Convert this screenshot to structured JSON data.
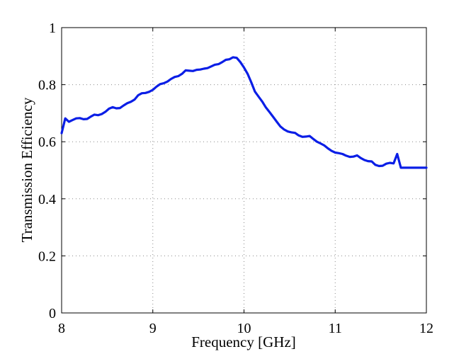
{
  "chart_data": {
    "type": "line",
    "title": "",
    "xlabel": "Frequency [GHz]",
    "ylabel": "Transmission Efficiency",
    "xlim": [
      8,
      12
    ],
    "ylim": [
      0,
      1
    ],
    "grid": true,
    "x_ticks": [
      8,
      9,
      10,
      11,
      12
    ],
    "y_ticks": [
      0,
      0.2,
      0.4,
      0.6,
      0.8,
      1
    ],
    "x_tick_labels": [
      "8",
      "9",
      "10",
      "11",
      "12"
    ],
    "y_tick_labels": [
      "0",
      "0.2",
      "0.4",
      "0.6",
      "0.8",
      "1"
    ],
    "line_color": "#0a1ee6",
    "series": [
      {
        "x": [
          8.0,
          8.04,
          8.08,
          8.12,
          8.16,
          8.2,
          8.24,
          8.28,
          8.32,
          8.36,
          8.4,
          8.44,
          8.48,
          8.52,
          8.56,
          8.6,
          8.64,
          8.68,
          8.72,
          8.76,
          8.8,
          8.84,
          8.88,
          8.92,
          8.96,
          9.0,
          9.04,
          9.08,
          9.12,
          9.16,
          9.2,
          9.24,
          9.28,
          9.32,
          9.36,
          9.4,
          9.44,
          9.48,
          9.52,
          9.56,
          9.6,
          9.64,
          9.68,
          9.72,
          9.76,
          9.8,
          9.84,
          9.88,
          9.92,
          9.96,
          10.0,
          10.04,
          10.08,
          10.12,
          10.16,
          10.2,
          10.24,
          10.28,
          10.32,
          10.36,
          10.4,
          10.44,
          10.48,
          10.52,
          10.56,
          10.6,
          10.64,
          10.68,
          10.72,
          10.76,
          10.8,
          10.84,
          10.88,
          10.92,
          10.96,
          11.0,
          11.04,
          11.08,
          11.12,
          11.16,
          11.2,
          11.24,
          11.28,
          11.32,
          11.36,
          11.4,
          11.44,
          11.48,
          11.52,
          11.56,
          11.6,
          11.64,
          11.68,
          11.72,
          11.76,
          11.8,
          11.84,
          11.88,
          11.92,
          11.96,
          12.0
        ],
        "values": [
          0.63,
          0.682,
          0.67,
          0.676,
          0.682,
          0.683,
          0.679,
          0.68,
          0.688,
          0.695,
          0.693,
          0.697,
          0.705,
          0.716,
          0.721,
          0.717,
          0.718,
          0.727,
          0.735,
          0.74,
          0.748,
          0.763,
          0.77,
          0.771,
          0.775,
          0.782,
          0.793,
          0.802,
          0.805,
          0.811,
          0.82,
          0.827,
          0.83,
          0.838,
          0.85,
          0.849,
          0.848,
          0.852,
          0.853,
          0.856,
          0.858,
          0.864,
          0.87,
          0.872,
          0.879,
          0.887,
          0.889,
          0.896,
          0.894,
          0.879,
          0.86,
          0.838,
          0.808,
          0.776,
          0.758,
          0.741,
          0.72,
          0.704,
          0.687,
          0.67,
          0.653,
          0.643,
          0.636,
          0.633,
          0.631,
          0.622,
          0.617,
          0.618,
          0.62,
          0.61,
          0.6,
          0.594,
          0.587,
          0.577,
          0.568,
          0.562,
          0.56,
          0.557,
          0.551,
          0.547,
          0.548,
          0.552,
          0.543,
          0.536,
          0.532,
          0.531,
          0.519,
          0.515,
          0.516,
          0.523,
          0.526,
          0.524,
          0.557,
          0.509,
          0.509,
          0.509,
          0.509,
          0.509,
          0.509,
          0.509,
          0.509
        ]
      }
    ]
  }
}
